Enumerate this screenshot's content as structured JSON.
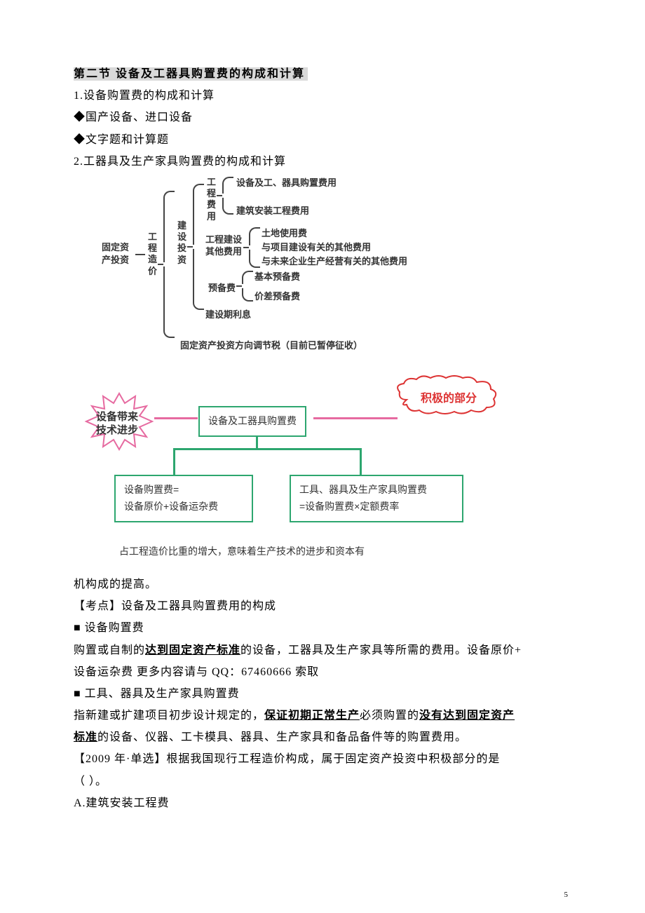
{
  "section_title": "第二节  设备及工器具购置费的构成和计算",
  "lines": {
    "l1": "1.设备购置费的构成和计算",
    "l2": "◆国产设备、进口设备",
    "l3": "◆文字题和计算题",
    "l4": "2.工器具及生产家具购置费的构成和计算"
  },
  "diagram1": {
    "root": "固定资\n产投资",
    "n2": "工\n程\n造\n价",
    "n3": "建\n设\n投\n资",
    "n4a": "工\n程\n费\n用",
    "n4a_children": [
      "设备及工、器具购置费用",
      "建筑安装工程费用"
    ],
    "n4b": "工程建设\n其他费用",
    "n4b_children": [
      "土地使用费",
      "与项目建设有关的其他费用",
      "与未来企业生产经营有关的其他费用"
    ],
    "n4c": "预备费",
    "n4c_children": [
      "基本预备费",
      "价差预备费"
    ],
    "n4d": "建设期利息",
    "n5": "固定资产投资方向调节税（目前已暂停征收）"
  },
  "diagram2": {
    "star_text": "设备带来\n技术进步",
    "box_top": "设备及工器具购置费",
    "cloud_text": "积极的部分",
    "box_left_l1": "设备购置费=",
    "box_left_l2": "设备原价+设备运杂费",
    "box_right_l1": "工具、器具及生产家具购置费",
    "box_right_l2": "=设备购置费×定额费率",
    "caption": "占工程造价比重的增大，意味着生产技术的进步和资本有"
  },
  "body": {
    "b1": "机构成的提高。",
    "b2": "【考点】设备及工器具购置费用的构成",
    "b3": "■ 设备购置费",
    "b4a": "购置或自制的",
    "b4b": "达到固定资产标准",
    "b4c": "的设备，工器具及生产家具等所需的费用。设备原价+",
    "b5": "设备运杂费  更多内容请与 QQ：67460666 索取",
    "b6": "■ 工具、器具及生产家具购置费",
    "b7a": "指新建或扩建项目初步设计规定的，",
    "b7b": "保证初期正常生产",
    "b7c": "必须购置的",
    "b7d": "没有达到固定资产",
    "b8a": "标准",
    "b8b": "的设备、仪器、工卡模具、器具、生产家具和备品备件等的购置费用。",
    "b9": "【2009 年·单选】根据我国现行工程造价构成，属于固定资产投资中积极部分的是",
    "b10": "（  ）。",
    "b11": "A.建筑安装工程费"
  },
  "pagenum": "5"
}
